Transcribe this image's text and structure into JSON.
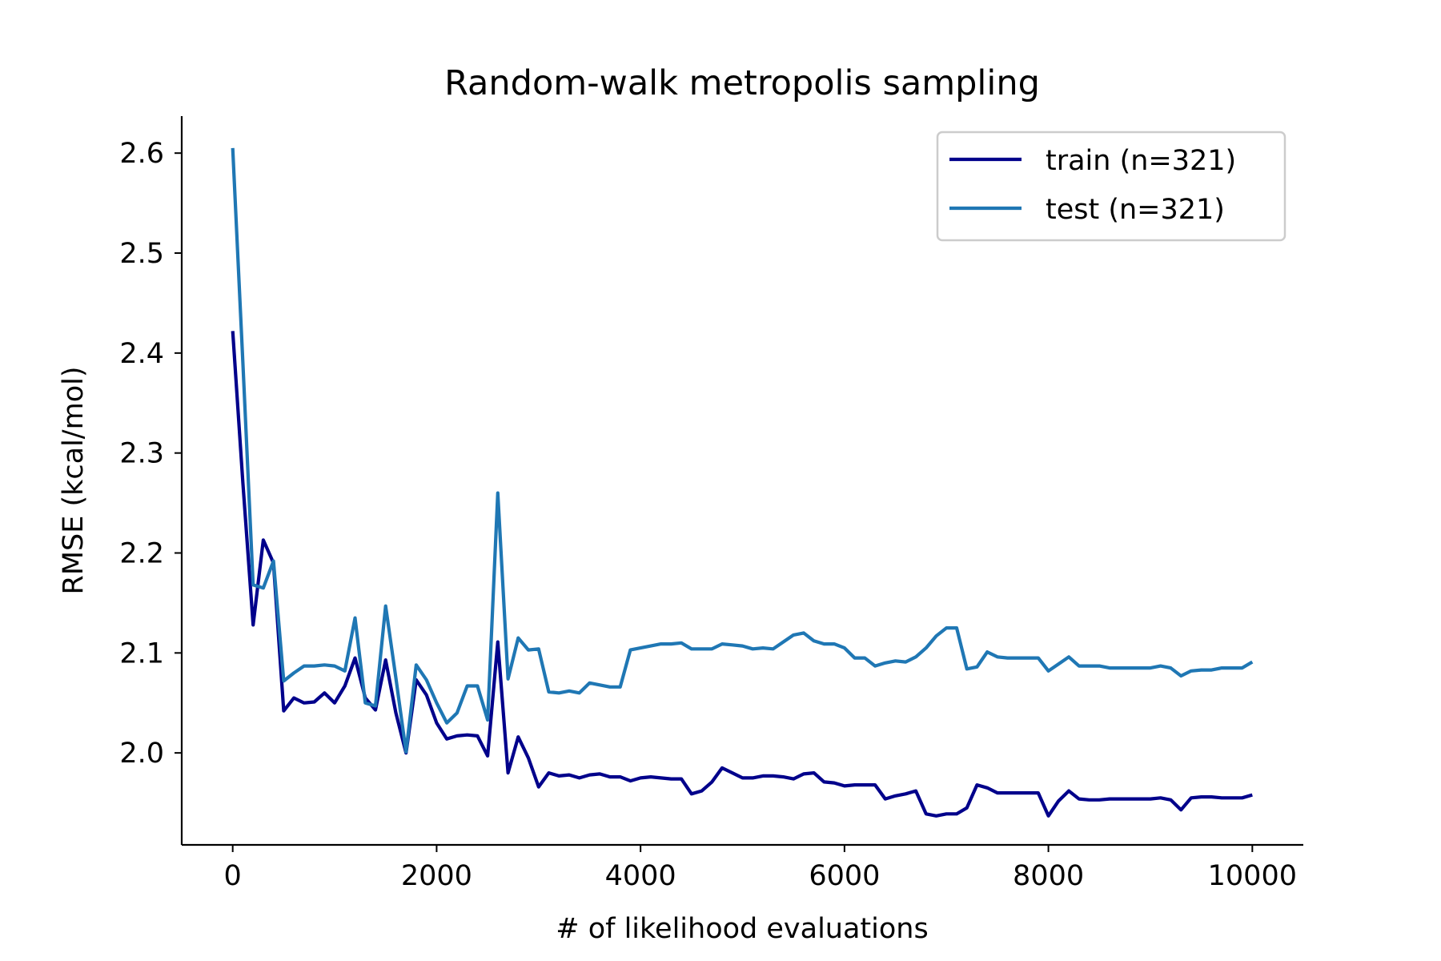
{
  "chart_data": {
    "type": "line",
    "title": "Random-walk metropolis sampling",
    "xlabel": "# of likelihood evaluations",
    "ylabel": "RMSE (kcal/mol)",
    "xlim": [
      -500,
      10500
    ],
    "ylim": [
      1.908,
      2.637
    ],
    "xticks": [
      0,
      2000,
      4000,
      6000,
      8000,
      10000
    ],
    "xtick_labels": [
      "0",
      "2000",
      "4000",
      "6000",
      "8000",
      "10000"
    ],
    "yticks": [
      2.0,
      2.1,
      2.2,
      2.3,
      2.4,
      2.5,
      2.6
    ],
    "ytick_labels": [
      "2.0",
      "2.1",
      "2.2",
      "2.3",
      "2.4",
      "2.5",
      "2.6"
    ],
    "grid": false,
    "legend_position": "top-right",
    "x": [
      0,
      100,
      200,
      300,
      400,
      500,
      600,
      700,
      800,
      900,
      1000,
      1100,
      1200,
      1300,
      1400,
      1500,
      1600,
      1700,
      1800,
      1900,
      2000,
      2100,
      2200,
      2300,
      2400,
      2500,
      2600,
      2700,
      2800,
      2900,
      3000,
      3100,
      3200,
      3300,
      3400,
      3500,
      3600,
      3700,
      3800,
      3900,
      4000,
      4100,
      4200,
      4300,
      4400,
      4500,
      4600,
      4700,
      4800,
      4900,
      5000,
      5100,
      5200,
      5300,
      5400,
      5500,
      5600,
      5700,
      5800,
      5900,
      6000,
      6100,
      6200,
      6300,
      6400,
      6500,
      6600,
      6700,
      6800,
      6900,
      7000,
      7100,
      7200,
      7300,
      7400,
      7500,
      7600,
      7700,
      7800,
      7900,
      8000,
      8100,
      8200,
      8300,
      8400,
      8500,
      8600,
      8700,
      8800,
      8900,
      9000,
      9100,
      9200,
      9300,
      9400,
      9500,
      9600,
      9700,
      9800,
      9900,
      10000
    ],
    "series": [
      {
        "name": "train (n=321)",
        "color": "#00008b",
        "values": [
          2.422,
          2.27,
          2.128,
          2.213,
          2.19,
          2.042,
          2.055,
          2.05,
          2.051,
          2.06,
          2.05,
          2.067,
          2.095,
          2.055,
          2.043,
          2.093,
          2.04,
          2.0,
          2.073,
          2.058,
          2.03,
          2.014,
          2.017,
          2.018,
          2.017,
          1.997,
          2.111,
          1.98,
          2.016,
          1.995,
          1.966,
          1.98,
          1.977,
          1.978,
          1.975,
          1.978,
          1.979,
          1.976,
          1.976,
          1.972,
          1.975,
          1.976,
          1.975,
          1.974,
          1.974,
          1.959,
          1.962,
          1.971,
          1.985,
          1.98,
          1.975,
          1.975,
          1.977,
          1.977,
          1.976,
          1.974,
          1.979,
          1.98,
          1.971,
          1.97,
          1.967,
          1.968,
          1.968,
          1.968,
          1.954,
          1.957,
          1.959,
          1.962,
          1.939,
          1.937,
          1.939,
          1.939,
          1.945,
          1.968,
          1.965,
          1.96,
          1.96,
          1.96,
          1.96,
          1.96,
          1.937,
          1.952,
          1.962,
          1.954,
          1.953,
          1.953,
          1.954,
          1.954,
          1.954,
          1.954,
          1.954,
          1.955,
          1.953,
          1.943,
          1.955,
          1.956,
          1.956,
          1.955,
          1.955,
          1.955,
          1.958
        ]
      },
      {
        "name": "test (n=321)",
        "color": "#1f77b4",
        "values": [
          2.605,
          2.39,
          2.168,
          2.165,
          2.192,
          2.072,
          2.08,
          2.087,
          2.087,
          2.088,
          2.087,
          2.082,
          2.135,
          2.05,
          2.047,
          2.147,
          2.075,
          2.001,
          2.088,
          2.073,
          2.05,
          2.03,
          2.04,
          2.067,
          2.067,
          2.033,
          2.26,
          2.074,
          2.115,
          2.103,
          2.104,
          2.061,
          2.06,
          2.062,
          2.06,
          2.07,
          2.068,
          2.066,
          2.066,
          2.103,
          2.105,
          2.107,
          2.109,
          2.109,
          2.11,
          2.104,
          2.104,
          2.104,
          2.109,
          2.108,
          2.107,
          2.104,
          2.105,
          2.104,
          2.111,
          2.118,
          2.12,
          2.112,
          2.109,
          2.109,
          2.105,
          2.095,
          2.095,
          2.087,
          2.09,
          2.092,
          2.091,
          2.096,
          2.105,
          2.117,
          2.125,
          2.125,
          2.084,
          2.086,
          2.101,
          2.096,
          2.095,
          2.095,
          2.095,
          2.095,
          2.082,
          2.089,
          2.096,
          2.087,
          2.087,
          2.087,
          2.085,
          2.085,
          2.085,
          2.085,
          2.085,
          2.087,
          2.085,
          2.077,
          2.082,
          2.083,
          2.083,
          2.085,
          2.085,
          2.085,
          2.091
        ]
      }
    ]
  }
}
